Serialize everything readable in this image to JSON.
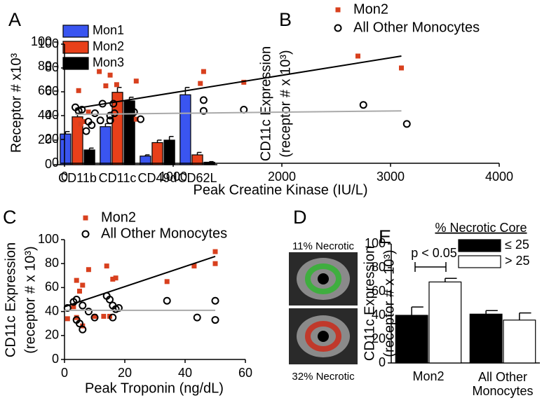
{
  "chart_data": [
    {
      "type": "bar",
      "panel": "A",
      "ylabel": "Receptor # x10³",
      "categories": [
        "CD11b",
        "CD11c",
        "CD49d",
        "CD62L"
      ],
      "series": [
        {
          "name": "Mon1",
          "color": "#3a55f0",
          "values": [
            25,
            31,
            7,
            57
          ],
          "errors": [
            2,
            2.5,
            1,
            6
          ]
        },
        {
          "name": "Mon2",
          "color": "#e8401a",
          "values": [
            39,
            59,
            18,
            8
          ],
          "errors": [
            3,
            4,
            2,
            2
          ]
        },
        {
          "name": "Mon3",
          "color": "#000000",
          "values": [
            12,
            52,
            20,
            2
          ],
          "errors": [
            1.5,
            3,
            3,
            0.5
          ]
        }
      ],
      "ylim": [
        0,
        100
      ],
      "yticks": [
        0,
        20,
        40,
        60,
        80,
        100
      ]
    },
    {
      "type": "scatter",
      "panel": "B",
      "ylabel": [
        "CD11c Expression",
        "(receptor # x 10³)"
      ],
      "xlabel": "Peak Creatine Kinase (IU/L)",
      "series": [
        {
          "name": "Mon2",
          "color": "#d8401e",
          "marker": "square",
          "x": [
            130,
            150,
            180,
            220,
            320,
            380,
            420,
            480,
            660,
            660,
            1280,
            1250,
            1650,
            2700,
            3100
          ],
          "values": [
            61,
            33,
            35,
            43,
            77,
            65,
            74,
            66,
            69,
            37,
            77,
            67,
            68,
            90,
            80
          ]
        },
        {
          "name": "All Other Monocytes",
          "color": "#000000",
          "marker": "circle",
          "x": [
            100,
            130,
            160,
            200,
            220,
            250,
            280,
            330,
            350,
            420,
            420,
            450,
            460,
            640,
            700,
            1280,
            1280,
            1650,
            2750,
            3150
          ],
          "values": [
            47,
            44,
            45,
            27,
            35,
            32,
            42,
            36,
            50,
            40,
            36,
            50,
            42,
            43,
            37,
            53,
            44,
            45,
            49,
            33
          ]
        }
      ],
      "fits": [
        {
          "color": "#000000",
          "x": [
            100,
            3100
          ],
          "values": [
            46,
            90
          ]
        },
        {
          "color": "#aaaaaa",
          "x": [
            100,
            3100
          ],
          "values": [
            41,
            44
          ]
        }
      ],
      "xlim": [
        0,
        4000
      ],
      "xticks": [
        0,
        1000,
        2000,
        3000,
        4000
      ],
      "ylim": [
        0,
        100
      ],
      "yticks": [
        0,
        20,
        40,
        60,
        80,
        100
      ]
    },
    {
      "type": "scatter",
      "panel": "C",
      "ylabel": [
        "CD11c Expression",
        "(receptor # x 10³)"
      ],
      "xlabel": "Peak Troponin (ng/dL)",
      "series": [
        {
          "name": "Mon2",
          "color": "#d8401e",
          "marker": "square",
          "x": [
            1,
            3,
            4,
            4,
            5,
            6,
            6,
            8,
            10,
            13,
            14,
            15,
            16,
            17,
            34,
            43,
            50,
            50
          ],
          "values": [
            34,
            44,
            66,
            35,
            57,
            62,
            28,
            75,
            36,
            36,
            78,
            36,
            67,
            68,
            65,
            78,
            90,
            80
          ]
        },
        {
          "name": "All Other Monocytes",
          "color": "#000000",
          "marker": "circle",
          "x": [
            1,
            3,
            4,
            4,
            5,
            6,
            6,
            8,
            10,
            14,
            15,
            16,
            16,
            17,
            18,
            34,
            44,
            50,
            50
          ],
          "values": [
            43,
            48,
            33,
            50,
            30,
            25,
            45,
            40,
            35,
            53,
            50,
            35,
            45,
            42,
            43,
            49,
            35,
            49,
            33
          ]
        }
      ],
      "fits": [
        {
          "color": "#000000",
          "x": [
            0,
            50
          ],
          "values": [
            44,
            86
          ]
        },
        {
          "color": "#aaaaaa",
          "x": [
            0,
            50
          ],
          "values": [
            41,
            41
          ]
        }
      ],
      "xlim": [
        0,
        60
      ],
      "xticks": [
        0,
        20,
        40,
        60
      ],
      "ylim": [
        0,
        100
      ],
      "yticks": [
        0,
        20,
        40,
        60,
        80,
        100
      ]
    },
    {
      "type": "image",
      "panel": "D",
      "labels": [
        "11% Necrotic",
        "32% Necrotic"
      ]
    },
    {
      "type": "bar",
      "panel": "E",
      "ylabel": [
        "CD11c Expression",
        "(receptor # x 10³)"
      ],
      "categories": [
        "Mon2",
        "All Other Monocytes"
      ],
      "legend_title": "% Necrotic Core",
      "annotation": "p < 0.05",
      "series": [
        {
          "name": "≤ 25",
          "color": "#000000",
          "values": [
            40,
            41
          ],
          "errors": [
            7,
            3
          ]
        },
        {
          "name": "> 25",
          "color": "#ffffff",
          "values": [
            68,
            36
          ],
          "errors": [
            3,
            6
          ]
        }
      ],
      "ylim": [
        0,
        100
      ],
      "yticks": [
        0,
        20,
        40,
        60,
        80,
        100
      ]
    }
  ]
}
